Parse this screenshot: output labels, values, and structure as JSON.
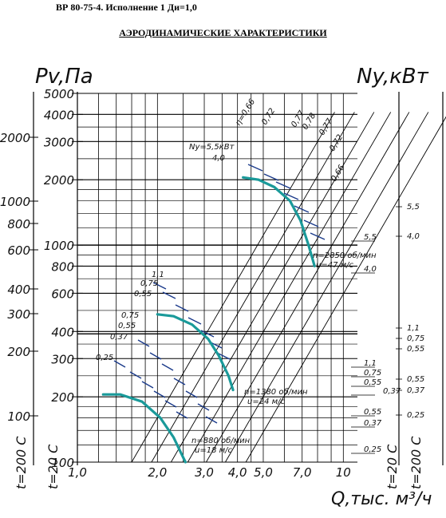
{
  "header": {
    "model_line": "ВР 80-75-4. Исполнение 1 Ди=1,0",
    "title": "АЭРОДИНАМИЧЕСКИЕ ХАРАКТЕРИСТИКИ"
  },
  "colors": {
    "curve": "#1a9a9a",
    "dashes": "#1a3a8a",
    "grid": "#000000"
  },
  "chart_data": {
    "type": "line",
    "xlabel": "Q,тыс. м³/ч",
    "ylabel_left": "Pv,Па",
    "ylabel_right": "Ny,кВт",
    "x_scale": "log",
    "y_scale": "log",
    "xlim": [
      1.0,
      10
    ],
    "ylim_20C": [
      100,
      5000
    ],
    "x_tick_labels": [
      "1,0",
      "2,0",
      "3,0",
      "4,0",
      "5,0",
      "7,0",
      "10"
    ],
    "y_tick_labels_20C": [
      "100",
      "200",
      "300",
      "400",
      "600",
      "800",
      "1000",
      "2000",
      "3000",
      "4000",
      "5000"
    ],
    "y_tick_labels_200C": [
      "100",
      "200",
      "300",
      "400",
      "600",
      "800",
      "1000",
      "2000"
    ],
    "temp_axis_labels": [
      "t=200 С",
      "t=20 С",
      "t=20 С",
      "t=200 С"
    ],
    "efficiency_labels": [
      "η=0,66",
      "0,72",
      "0,77",
      "0,78",
      "0,77",
      "0,72",
      "0,66"
    ],
    "series": [
      {
        "name": "n=2850 об/мин u=47 м/с",
        "label_lines": [
          "n=2850 об/мин",
          "u=47 м/с"
        ],
        "x": [
          4.2,
          4.8,
          5.5,
          6.3,
          6.9,
          7.4,
          7.8
        ],
        "y": [
          2050,
          2000,
          1850,
          1600,
          1300,
          1000,
          800
        ]
      },
      {
        "name": "n=1380 об/мин u=24 м/с",
        "label_lines": [
          "n=1380 об/мин",
          "u=24 м/с"
        ],
        "x": [
          2.0,
          2.3,
          2.7,
          3.1,
          3.4,
          3.7,
          3.85
        ],
        "y": [
          480,
          470,
          430,
          370,
          310,
          250,
          215
        ]
      },
      {
        "name": "n=880 об/мин u=18 м/с",
        "label_lines": [
          "n=880 об/мин",
          "u=18 м/с"
        ],
        "x": [
          1.25,
          1.45,
          1.75,
          2.05,
          2.3,
          2.5,
          2.55
        ],
        "y": [
          205,
          205,
          190,
          160,
          130,
          105,
          100
        ]
      }
    ],
    "power_labels": [
      {
        "text": "Ny=5,5кВт"
      },
      {
        "text": "4,0"
      },
      {
        "text": "1,1"
      },
      {
        "text": "0,75"
      },
      {
        "text": "0,55"
      },
      {
        "text": "0,75"
      },
      {
        "text": "0,55"
      },
      {
        "text": "0,37"
      },
      {
        "text": "0,25"
      }
    ],
    "right_axis_series": [
      {
        "name": "2850 об/мин",
        "labels": [
          "5,5",
          "4,0"
        ]
      },
      {
        "name": "1380 об/мин",
        "labels": [
          "1,1",
          "0,75",
          "0,55",
          "0,37"
        ]
      },
      {
        "name": "880 об/мин",
        "labels": [
          "0,55",
          "0,37",
          "0,25"
        ]
      }
    ],
    "right_axis_far_labels": [
      "5,5",
      "4,0",
      "1,1",
      "0,75",
      "0,55",
      "0,55",
      "0,37",
      "0,25"
    ],
    "grid": true
  }
}
